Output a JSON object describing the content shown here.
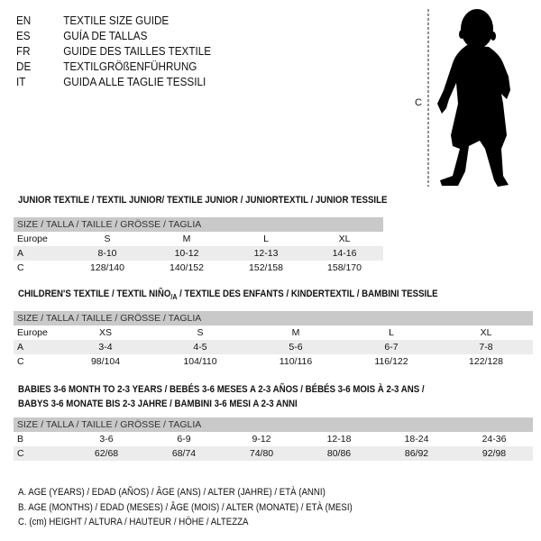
{
  "languages": [
    {
      "code": "EN",
      "text": "TEXTILE SIZE GUIDE"
    },
    {
      "code": "ES",
      "text": "GUÍA DE TALLAS"
    },
    {
      "code": "FR",
      "text": "GUIDE DES TAILLES TEXTILE"
    },
    {
      "code": "DE",
      "text": "TEXTILGRÖßENFÜHRUNG"
    },
    {
      "code": "IT",
      "text": "GUIDA ALLE TAGLIE TESSILI"
    }
  ],
  "figure": {
    "measure_label": "C",
    "icon": "child-silhouette-icon"
  },
  "size_header": "SIZE / TALLA / TAILLE / GRÖSSE / TAGLIA",
  "junior": {
    "title": "JUNIOR TEXTILE / TEXTIL JUNIOR/ TEXTILE JUNIOR / JUNIORTEXTIL / JUNIOR TESSILE",
    "rows": [
      {
        "label": "Europe",
        "values": [
          "S",
          "M",
          "L",
          "XL"
        ]
      },
      {
        "label": "A",
        "values": [
          "8-10",
          "10-12",
          "12-13",
          "14-16"
        ]
      },
      {
        "label": "C",
        "values": [
          "128/140",
          "140/152",
          "152/158",
          "158/170"
        ]
      }
    ]
  },
  "children": {
    "title_a": "CHILDREN'S TEXTILE / TEXTIL NIÑO",
    "title_sub": "/A",
    "title_b": " / TEXTILE DES ENFANTS / KINDERTEXTIL / BAMBINI TESSILE",
    "rows": [
      {
        "label": "Europe",
        "values": [
          "XS",
          "S",
          "M",
          "L",
          "XL"
        ]
      },
      {
        "label": "A",
        "values": [
          "3-4",
          "4-5",
          "5-6",
          "6-7",
          "7-8"
        ]
      },
      {
        "label": "C",
        "values": [
          "98/104",
          "104/110",
          "110/116",
          "116/122",
          "122/128"
        ]
      }
    ]
  },
  "babies": {
    "title_line1": "BABIES 3-6 MONTH TO 2-3 YEARS / BEBÉS 3-6 MESES A 2-3 AÑOS / BÉBÉS 3-6 MOIS À 2-3 ANS /",
    "title_line2": "BABYS 3-6 MONATE BIS 2-3 JAHRE / BAMBINI 3-6 MESI A 2-3 ANNI",
    "rows": [
      {
        "label": "B",
        "values": [
          "3-6",
          "6-9",
          "9-12",
          "12-18",
          "18-24",
          "24-36"
        ]
      },
      {
        "label": "C",
        "values": [
          "62/68",
          "68/74",
          "74/80",
          "80/86",
          "86/92",
          "92/98"
        ]
      }
    ]
  },
  "legend": [
    "A. AGE (YEARS) / EDAD (AÑOS) / ÂGE (ANS) / ALTER (JAHRE) / ETÀ (ANNI)",
    "B. AGE (MONTHS) / EDAD (MESES) / ÂGE (MOIS) / ALTER (MONATE) / ETÀ (MESI)",
    "C. (cm) HEIGHT / ALTURA / HAUTEUR / HÖHE / ALTEZZA"
  ]
}
